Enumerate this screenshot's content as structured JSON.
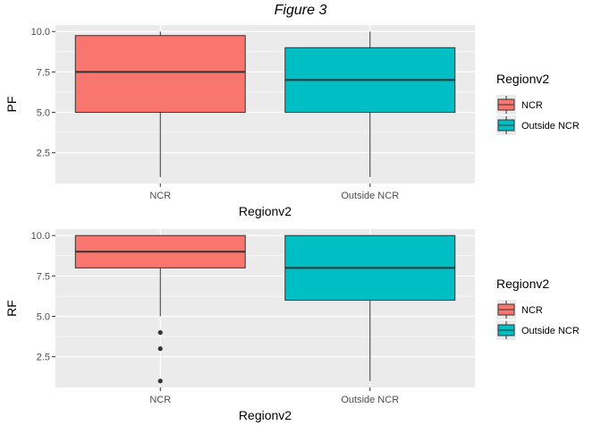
{
  "figure": {
    "title": "Figure 3"
  },
  "legend_style": {
    "colors": {
      "NCR": "#F8766D",
      "Outside NCR": "#00BFC4"
    },
    "panel_bg": "#EBEBEB",
    "grid": "#FFFFFF"
  },
  "chart_data": [
    {
      "type": "box",
      "xlabel": "Regionv2",
      "ylabel": "PF",
      "categories": [
        "NCR",
        "Outside NCR"
      ],
      "ylim": [
        0.6,
        10.4
      ],
      "yticks": [
        2.5,
        5.0,
        7.5,
        10.0
      ],
      "ytick_labels": [
        "2.5",
        "5.0",
        "7.5",
        "10.0"
      ],
      "grid": true,
      "legend": {
        "title": "Regionv2",
        "entries": [
          "NCR",
          "Outside NCR"
        ],
        "position": "right"
      },
      "boxes": [
        {
          "category": "NCR",
          "min": 1,
          "q1": 5,
          "median": 7.5,
          "q3": 9.75,
          "max": 10,
          "outliers": []
        },
        {
          "category": "Outside NCR",
          "min": 1,
          "q1": 5,
          "median": 7,
          "q3": 9,
          "max": 10,
          "outliers": []
        }
      ]
    },
    {
      "type": "box",
      "xlabel": "Regionv2",
      "ylabel": "RF",
      "categories": [
        "NCR",
        "Outside NCR"
      ],
      "ylim": [
        0.6,
        10.4
      ],
      "yticks": [
        2.5,
        5.0,
        7.5,
        10.0
      ],
      "ytick_labels": [
        "2.5",
        "5.0",
        "7.5",
        "10.0"
      ],
      "grid": true,
      "legend": {
        "title": "Regionv2",
        "entries": [
          "NCR",
          "Outside NCR"
        ],
        "position": "right"
      },
      "boxes": [
        {
          "category": "NCR",
          "min": 5,
          "q1": 8,
          "median": 9,
          "q3": 10,
          "max": 10,
          "outliers": [
            4,
            3,
            1
          ]
        },
        {
          "category": "Outside NCR",
          "min": 1,
          "q1": 6,
          "median": 8,
          "q3": 10,
          "max": 10,
          "outliers": []
        }
      ]
    }
  ]
}
